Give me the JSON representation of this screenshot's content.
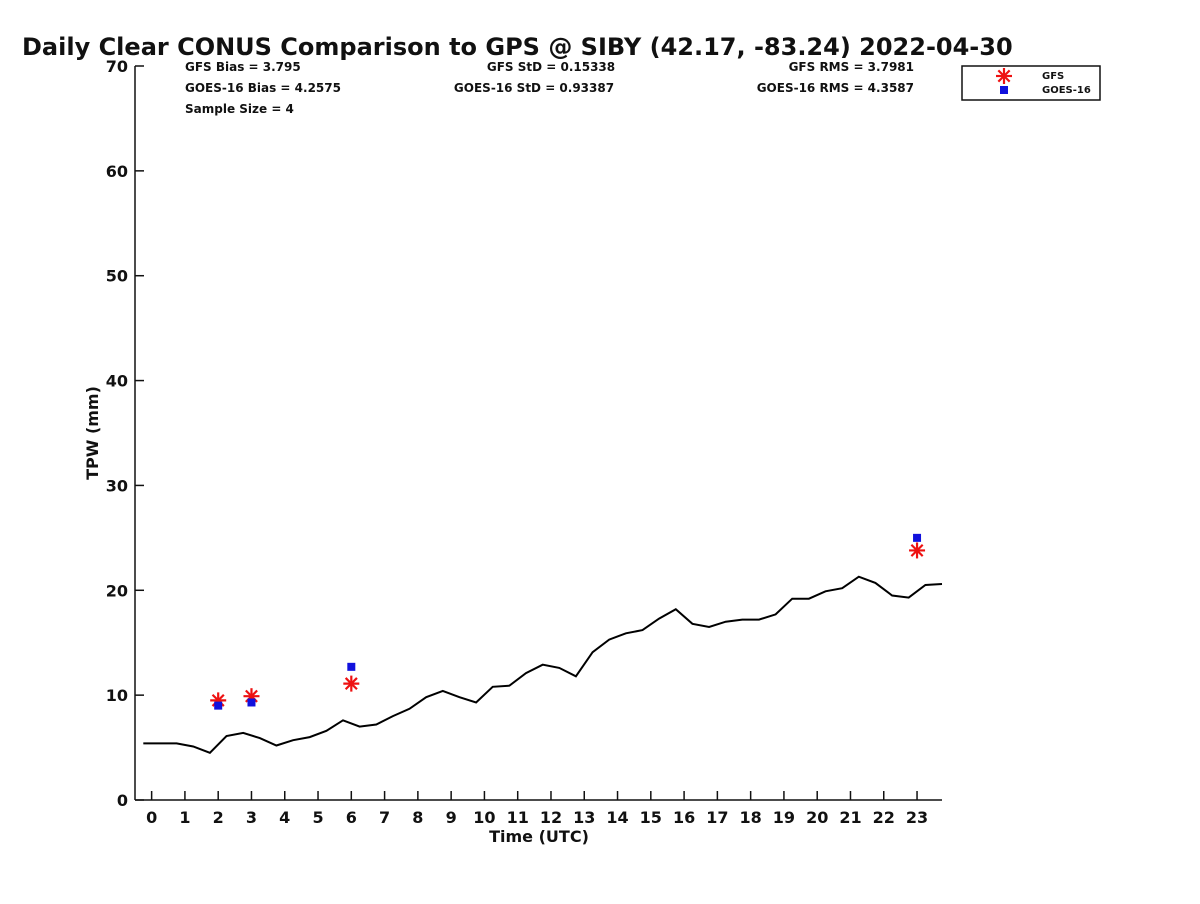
{
  "chart_data": {
    "type": "scatter",
    "title": "Daily Clear CONUS Comparison to GPS @ SIBY (42.17, -83.24) 2022-04-30",
    "xlabel": "Time (UTC)",
    "ylabel": "TPW (mm)",
    "xlim": [
      -0.5,
      23.75
    ],
    "ylim": [
      0,
      70
    ],
    "xticks": [
      0,
      1,
      2,
      3,
      4,
      5,
      6,
      7,
      8,
      9,
      10,
      11,
      12,
      13,
      14,
      15,
      16,
      17,
      18,
      19,
      20,
      21,
      22,
      23
    ],
    "yticks": [
      0,
      10,
      20,
      30,
      40,
      50,
      60,
      70
    ],
    "grid": false,
    "legend_position": "top-right",
    "stats": {
      "gfs_bias": "GFS Bias = 3.795",
      "goes_bias": "GOES-16 Bias = 4.2575",
      "sample_size": "Sample Size = 4",
      "gfs_std": "GFS StD = 0.15338",
      "goes_std": "GOES-16 StD = 0.93387",
      "gfs_rms": "GFS RMS = 3.7981",
      "goes_rms": "GOES-16 RMS = 4.3587"
    },
    "series": [
      {
        "name": "GPS",
        "kind": "line",
        "color": "#000000",
        "x": [
          -0.25,
          0.25,
          0.75,
          1.25,
          1.75,
          2.25,
          2.75,
          3.25,
          3.75,
          4.25,
          4.75,
          5.25,
          5.75,
          6.25,
          6.75,
          7.25,
          7.75,
          8.25,
          8.75,
          9.25,
          9.75,
          10.25,
          10.75,
          11.25,
          11.75,
          12.25,
          12.75,
          13.25,
          13.75,
          14.25,
          14.75,
          15.25,
          15.75,
          16.25,
          16.75,
          17.25,
          17.75,
          18.25,
          18.75,
          19.25,
          19.75,
          20.25,
          20.75,
          21.25,
          21.75,
          22.25,
          22.75,
          23.25,
          23.75
        ],
        "y": [
          5.4,
          5.4,
          5.4,
          5.1,
          4.5,
          6.1,
          6.4,
          5.9,
          5.2,
          5.7,
          6.0,
          6.6,
          7.6,
          7.0,
          7.2,
          8.0,
          8.7,
          9.8,
          10.4,
          9.8,
          9.3,
          10.8,
          10.9,
          12.1,
          12.9,
          12.6,
          11.8,
          14.1,
          15.3,
          15.9,
          16.2,
          17.3,
          18.2,
          16.8,
          16.5,
          17.0,
          17.2,
          17.2,
          17.7,
          19.2,
          19.2,
          19.9,
          20.2,
          21.3,
          20.7,
          19.5,
          19.3,
          20.5,
          20.6
        ]
      },
      {
        "name": "GFS",
        "kind": "marker",
        "marker": "asterisk",
        "color": "#ee1111",
        "x": [
          2,
          3,
          6,
          23
        ],
        "y": [
          9.5,
          9.9,
          11.1,
          23.8
        ]
      },
      {
        "name": "GOES-16",
        "kind": "marker",
        "marker": "square",
        "color": "#1111dd",
        "x": [
          2,
          3,
          6,
          23
        ],
        "y": [
          9.0,
          9.3,
          12.7,
          25.0
        ]
      }
    ]
  }
}
